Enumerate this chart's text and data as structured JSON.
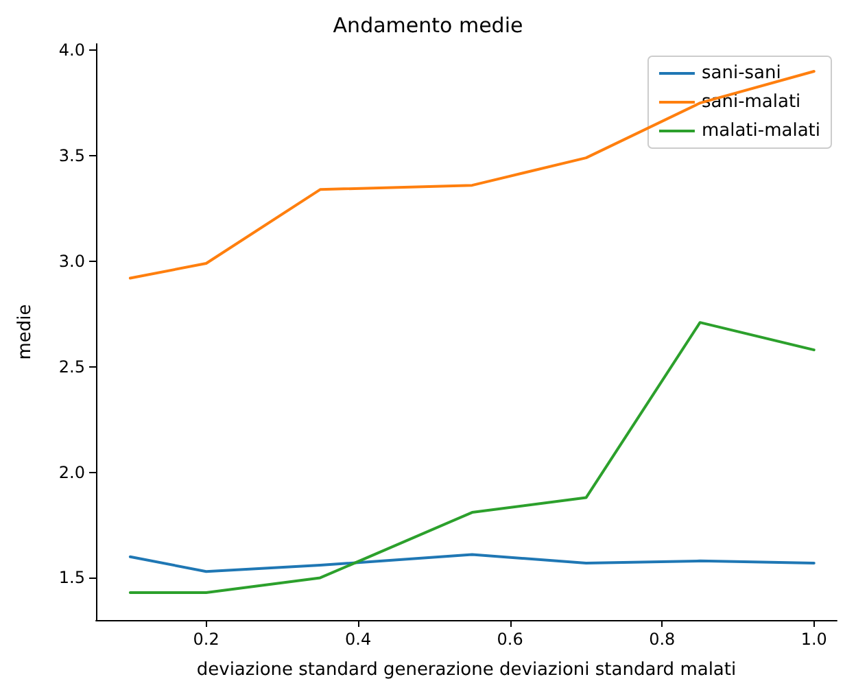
{
  "chart_data": {
    "type": "line",
    "title": "Andamento medie",
    "xlabel": "deviazione standard generazione deviazioni standard malati",
    "ylabel": "medie",
    "x": [
      0.1,
      0.2,
      0.35,
      0.55,
      0.7,
      0.85,
      1.0
    ],
    "series": [
      {
        "name": "sani-sani",
        "color": "#1f77b4",
        "values": [
          1.6,
          1.53,
          1.56,
          1.61,
          1.57,
          1.58,
          1.57
        ]
      },
      {
        "name": "sani-malati",
        "color": "#ff7f0e",
        "values": [
          2.92,
          2.99,
          3.34,
          3.36,
          3.49,
          3.75,
          3.9
        ]
      },
      {
        "name": "malati-malati",
        "color": "#2ca02c",
        "values": [
          1.43,
          1.43,
          1.5,
          1.81,
          1.88,
          2.71,
          2.58
        ]
      }
    ],
    "xlim": [
      0.055,
      1.03
    ],
    "xticks": [
      0.2,
      0.4,
      0.6,
      0.8,
      {
        "value": 1,
        "label": "1.0"
      }
    ],
    "ylim": [
      1.3,
      4.03
    ],
    "yticks": [
      1.5,
      {
        "value": 2,
        "label": "2.0"
      },
      2.5,
      {
        "value": 3,
        "label": "3.0"
      },
      3.5,
      {
        "value": 4,
        "label": "4.0"
      }
    ],
    "legend": "top right",
    "grid": false,
    "marker": "none",
    "line_style": "solid"
  }
}
